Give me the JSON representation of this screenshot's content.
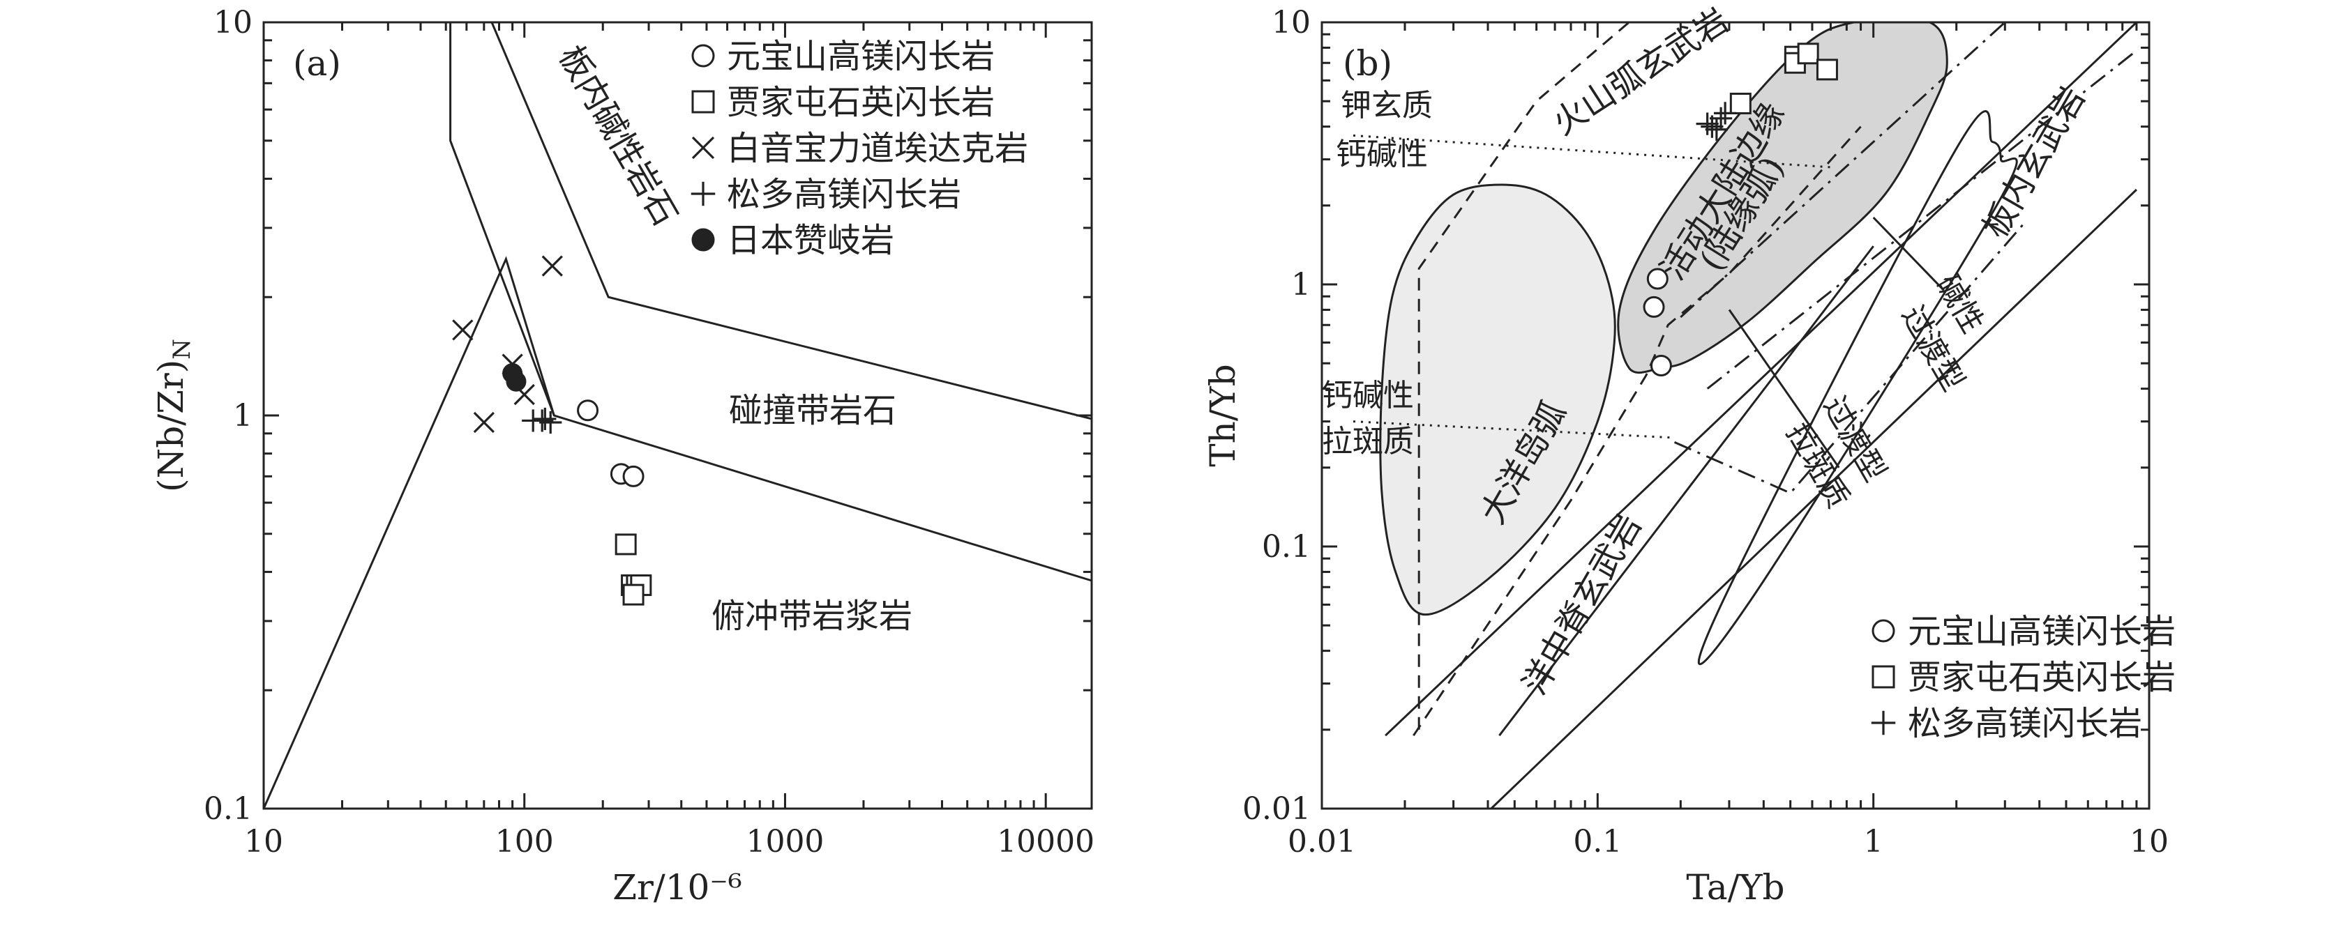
{
  "chart_data": [
    {
      "type": "scatter",
      "panel_label": "(a)",
      "xlabel": "Zr/10⁻⁶",
      "ylabel": "(Nb/Zr)N",
      "ylabel_main": "(Nb/Zr)",
      "ylabel_sub": "N",
      "xscale": "log",
      "yscale": "log",
      "xlim": [
        10,
        15000
      ],
      "ylim": [
        0.1,
        10
      ],
      "xticks": [
        {
          "v": 10,
          "label": "10"
        },
        {
          "v": 100,
          "label": "100"
        },
        {
          "v": 1000,
          "label": "1000"
        },
        {
          "v": 10000,
          "label": "10000"
        }
      ],
      "yticks": [
        {
          "v": 0.1,
          "label": "0.1"
        },
        {
          "v": 1,
          "label": "1"
        },
        {
          "v": 10,
          "label": "10"
        }
      ],
      "legend_position": "top-right",
      "field_labels": {
        "intraplate": "板内碱性岩石",
        "collision": "碰撞带岩石",
        "subduction": "俯冲带岩浆岩"
      },
      "series": [
        {
          "name": "元宝山高镁闪长岩",
          "marker": "circle-open",
          "points": [
            [
              175,
              1.03
            ],
            [
              235,
              0.71
            ],
            [
              262,
              0.7
            ]
          ]
        },
        {
          "name": "贾家屯石英闪长岩",
          "marker": "square-open",
          "points": [
            [
              245,
              0.47
            ],
            [
              258,
              0.37
            ],
            [
              270,
              0.37
            ],
            [
              280,
              0.37
            ],
            [
              262,
              0.35
            ]
          ]
        },
        {
          "name": "白音宝力道埃达克岩",
          "marker": "x",
          "points": [
            [
              58,
              1.65
            ],
            [
              70,
              0.96
            ],
            [
              90,
              1.35
            ],
            [
              100,
              1.13
            ],
            [
              128,
              2.4
            ]
          ]
        },
        {
          "name": "松多高镁闪长岩",
          "marker": "plus",
          "points": [
            [
              108,
              0.97
            ],
            [
              117,
              0.97
            ],
            [
              126,
              0.96
            ],
            [
              120,
              0.98
            ]
          ]
        },
        {
          "name": "日本赞岐岩",
          "marker": "circle-filled",
          "points": [
            [
              90,
              1.28
            ],
            [
              93,
              1.22
            ]
          ]
        }
      ]
    },
    {
      "type": "scatter",
      "panel_label": "(b)",
      "xlabel": "Ta/Yb",
      "ylabel": "Th/Yb",
      "xscale": "log",
      "yscale": "log",
      "xlim": [
        0.01,
        10
      ],
      "ylim": [
        0.01,
        10
      ],
      "xticks": [
        {
          "v": 0.01,
          "label": "0.01"
        },
        {
          "v": 0.1,
          "label": "0.1"
        },
        {
          "v": 1,
          "label": "1"
        },
        {
          "v": 10,
          "label": "10"
        }
      ],
      "yticks": [
        {
          "v": 0.01,
          "label": "0.01"
        },
        {
          "v": 0.1,
          "label": "0.1"
        },
        {
          "v": 1,
          "label": "1"
        },
        {
          "v": 10,
          "label": "10"
        }
      ],
      "legend_position": "bottom-right",
      "field_labels": {
        "shoshonitic": "钾玄质",
        "calc_alkaline": "钙碱性",
        "calc_alkaline_2": "钙碱性",
        "tholeiitic": "拉斑质",
        "volcanic_arc": "火山弧玄武岩",
        "active_margin": "活动大陆边缘",
        "continental_arc": "(陆缘弧)",
        "oceanic_arc": "大洋岛弧",
        "intraplate": "板内玄武岩",
        "alkaline": "碱性",
        "transitional": "过渡型",
        "transitional_2": "过渡型",
        "tholeiitic_2": "拉斑质",
        "morb": "洋中脊玄武岩"
      },
      "series": [
        {
          "name": "元宝山高镁闪长岩",
          "marker": "circle-open",
          "points": [
            [
              0.165,
              1.05
            ],
            [
              0.16,
              0.82
            ],
            [
              0.17,
              0.49
            ]
          ]
        },
        {
          "name": "贾家屯石英闪长岩",
          "marker": "square-open",
          "points": [
            [
              0.33,
              4.9
            ],
            [
              0.52,
              7.4
            ],
            [
              0.52,
              7.0
            ],
            [
              0.58,
              7.6
            ],
            [
              0.68,
              6.6
            ]
          ]
        },
        {
          "name": "松多高镁闪长岩",
          "marker": "plus",
          "points": [
            [
              0.26,
              4.0
            ],
            [
              0.28,
              4.3
            ],
            [
              0.27,
              3.9
            ],
            [
              0.29,
              4.5
            ],
            [
              0.25,
              4.1
            ]
          ]
        }
      ]
    }
  ]
}
